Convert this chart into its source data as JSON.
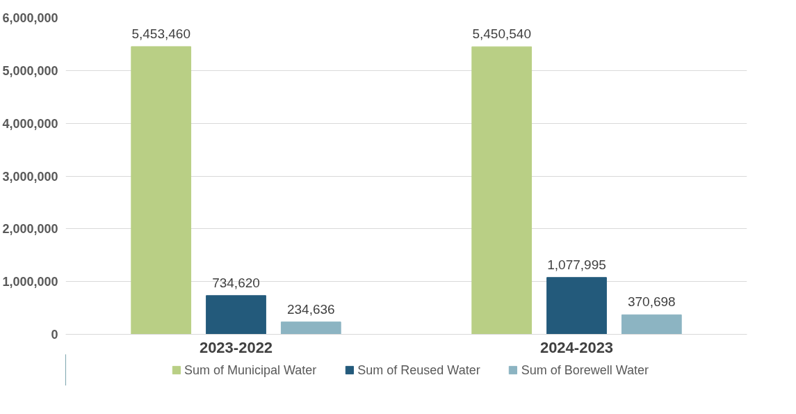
{
  "chart_data": {
    "type": "bar",
    "categories": [
      "2023-2022",
      "2024-2023"
    ],
    "series": [
      {
        "name": "Sum of Municipal Water",
        "color": "#b9cf85",
        "values": [
          5453460,
          5450540
        ],
        "value_labels": [
          "5,453,460",
          "5,450,540"
        ]
      },
      {
        "name": "Sum of Reused Water",
        "color": "#235a7b",
        "values": [
          734620,
          1077995
        ],
        "value_labels": [
          "734,620",
          "1,077,995"
        ]
      },
      {
        "name": "Sum of Borewell Water",
        "color": "#8cb4c2",
        "values": [
          234636,
          370698
        ],
        "value_labels": [
          "234,636",
          "370,698"
        ]
      }
    ],
    "ylim": [
      0,
      6000000
    ],
    "yticks": [
      {
        "value": 0,
        "label": "0"
      },
      {
        "value": 1000000,
        "label": "1,000,000"
      },
      {
        "value": 2000000,
        "label": "2,000,000"
      },
      {
        "value": 3000000,
        "label": "3,000,000"
      },
      {
        "value": 4000000,
        "label": "4,000,000"
      },
      {
        "value": 5000000,
        "label": "5,000,000"
      },
      {
        "value": 6000000,
        "label": "6,000,000"
      }
    ],
    "grid": "y",
    "legend": "bottom"
  }
}
